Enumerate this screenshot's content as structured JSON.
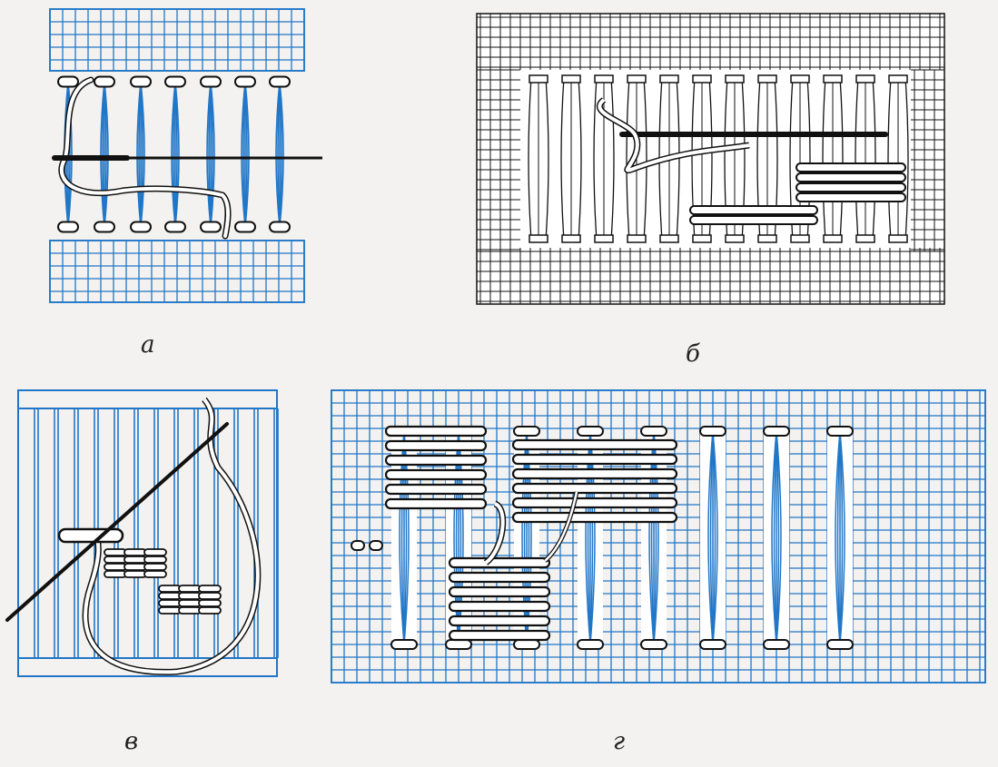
{
  "figure": {
    "panels": [
      {
        "id": "a",
        "caption": "а"
      },
      {
        "id": "b",
        "caption": "б"
      },
      {
        "id": "v",
        "caption": "в"
      },
      {
        "id": "g",
        "caption": "г"
      }
    ]
  },
  "colors": {
    "blue_grid": "#2176c7",
    "black_ink": "#111111",
    "thread_fill": "#ffffff",
    "paper": "#f3f2f0"
  }
}
